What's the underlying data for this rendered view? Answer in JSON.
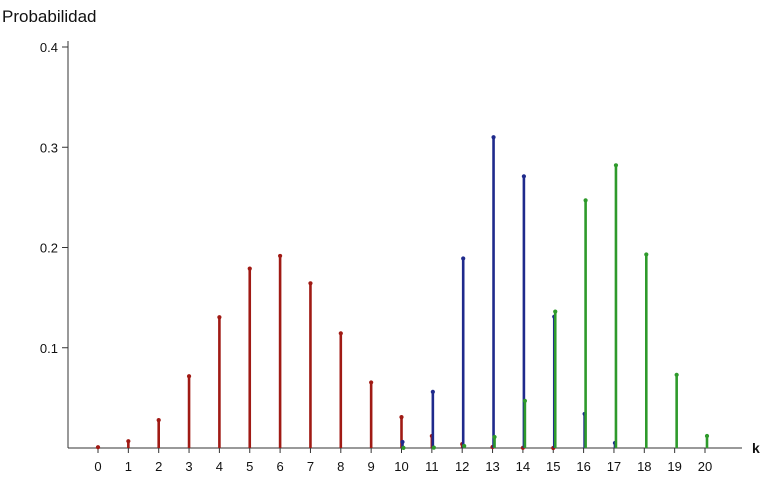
{
  "colors": {
    "axis": "#333333",
    "series_red": "#a01a14",
    "series_blue": "#1f2a8c",
    "series_green": "#2e9a2b"
  },
  "chart_data": {
    "type": "bar",
    "style": "stem",
    "title": "",
    "xlabel": "k",
    "ylabel": "Probabilidad",
    "ylim": [
      0,
      0.4
    ],
    "yticks": [
      "0.1",
      "0.2",
      "0.3",
      "0.4"
    ],
    "ytick_values": [
      0.1,
      0.2,
      0.3,
      0.4
    ],
    "categories": [
      "0",
      "1",
      "2",
      "3",
      "4",
      "5",
      "6",
      "7",
      "8",
      "9",
      "10",
      "11",
      "12",
      "13",
      "14",
      "15",
      "16",
      "17",
      "18",
      "19",
      "20"
    ],
    "grid": false,
    "legend": "none",
    "series": [
      {
        "color": "#a01a14",
        "values": [
          0.0008,
          0.0068,
          0.0278,
          0.0716,
          0.1304,
          0.1789,
          0.1916,
          0.1643,
          0.1144,
          0.0654,
          0.0308,
          0.012,
          0.0039,
          0.001,
          0.0002,
          3e-05,
          0,
          0,
          0,
          0,
          0
        ]
      },
      {
        "color": "#1f2a8c",
        "values": [
          0,
          0,
          0,
          0,
          0,
          0,
          0,
          0,
          0,
          0,
          0.006,
          0.056,
          0.189,
          0.31,
          0.271,
          0.131,
          0.034,
          0.005,
          0,
          0,
          0
        ]
      },
      {
        "color": "#2e9a2b",
        "values": [
          0,
          0,
          0,
          0,
          0,
          0,
          0,
          0,
          0,
          0,
          0.0001,
          0.0004,
          0.002,
          0.011,
          0.047,
          0.136,
          0.247,
          0.282,
          0.193,
          0.073,
          0.012
        ]
      }
    ]
  }
}
